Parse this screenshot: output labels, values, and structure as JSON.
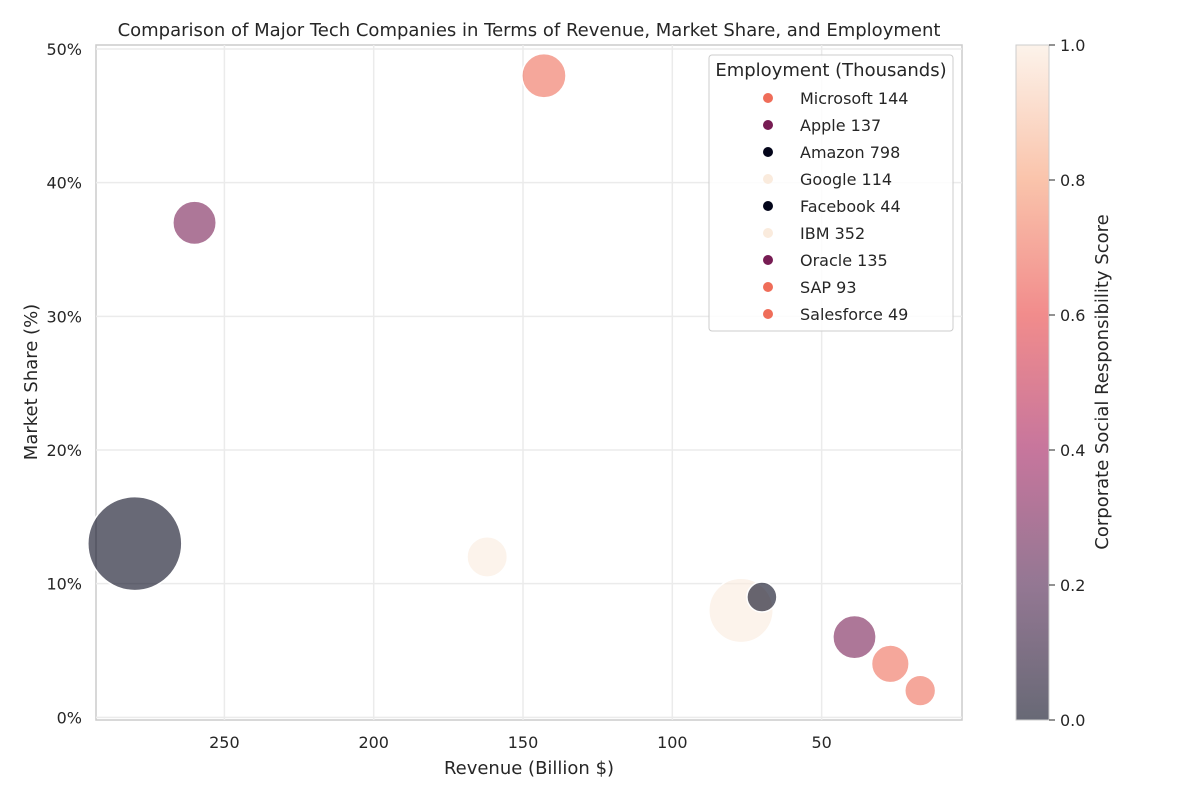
{
  "chart_data": {
    "type": "scatter",
    "title": "Comparison of Major Tech Companies in Terms of Revenue, Market Share, and Employment",
    "xlabel": "Revenue (Billion $)",
    "ylabel": "Market Share (%)",
    "x_inverted": true,
    "xlim": [
      293,
      3
    ],
    "ylim": [
      -0.2,
      50.3
    ],
    "x_ticks": [
      250,
      200,
      150,
      100,
      50
    ],
    "y_ticks": [
      0,
      10,
      20,
      30,
      40,
      50
    ],
    "y_tick_labels": [
      "0%",
      "10%",
      "20%",
      "30%",
      "40%",
      "50%"
    ],
    "grid": true,
    "legend": {
      "title": "Employment (Thousands)",
      "placement": "top-right",
      "entries": [
        {
          "label": "Microsoft 144",
          "score": 0.7
        },
        {
          "label": "Apple 137",
          "score": 0.3
        },
        {
          "label": "Amazon 798",
          "score": 0.0
        },
        {
          "label": "Google 114",
          "score": 1.0
        },
        {
          "label": "Facebook 44",
          "score": 0.0
        },
        {
          "label": "IBM 352",
          "score": 1.0
        },
        {
          "label": "Oracle 135",
          "score": 0.3
        },
        {
          "label": "SAP 93",
          "score": 0.7
        },
        {
          "label": "Salesforce 49",
          "score": 0.7
        }
      ]
    },
    "points": [
      {
        "company": "Microsoft",
        "revenue": 143,
        "market_share": 48,
        "employment": 144,
        "score": 0.7
      },
      {
        "company": "Apple",
        "revenue": 260,
        "market_share": 37,
        "employment": 137,
        "score": 0.3
      },
      {
        "company": "Amazon",
        "revenue": 280,
        "market_share": 13,
        "employment": 798,
        "score": 0.0
      },
      {
        "company": "Google",
        "revenue": 162,
        "market_share": 12,
        "employment": 114,
        "score": 1.0
      },
      {
        "company": "Facebook",
        "revenue": 70,
        "market_share": 9,
        "employment": 44,
        "score": 0.0
      },
      {
        "company": "IBM",
        "revenue": 77,
        "market_share": 8,
        "employment": 352,
        "score": 1.0
      },
      {
        "company": "Oracle",
        "revenue": 39,
        "market_share": 6,
        "employment": 135,
        "score": 0.3
      },
      {
        "company": "SAP",
        "revenue": 27,
        "market_share": 4,
        "employment": 93,
        "score": 0.7
      },
      {
        "company": "Salesforce",
        "revenue": 17,
        "market_share": 2,
        "employment": 49,
        "score": 0.7
      }
    ],
    "colorbar": {
      "label": "Corporate Social Responsibility Score",
      "range": [
        0.0,
        1.0
      ],
      "ticks": [
        "0.0",
        "0.2",
        "0.4",
        "0.6",
        "0.8",
        "1.0"
      ],
      "colormap": "rocket (dark navy to pink to cream)"
    },
    "marker_alpha": 0.6
  }
}
